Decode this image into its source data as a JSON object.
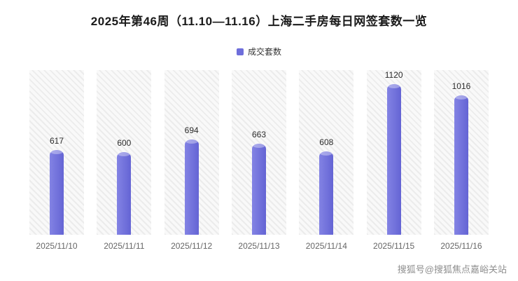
{
  "title": "2025年第46周（11.10—11.16）上海二手房每日网签套数一览",
  "legend": {
    "label": "成交套数",
    "color": "#6e6edb"
  },
  "watermark": "搜狐号@搜狐焦点嘉峪关站",
  "chart_data": {
    "type": "bar",
    "title": "2025年第46周（11.10—11.16）上海二手房每日网签套数一览",
    "series_name": "成交套数",
    "categories": [
      "2025/11/10",
      "2025/11/11",
      "2025/11/12",
      "2025/11/13",
      "2025/11/14",
      "2025/11/15",
      "2025/11/16"
    ],
    "values": [
      617,
      600,
      694,
      663,
      608,
      1120,
      1016
    ],
    "xlabel": "",
    "ylabel": "",
    "ylim": [
      0,
      1200
    ],
    "bar_color": "#6e6edb",
    "grid": false,
    "legend_position": "top",
    "column_background": "diagonal-hatch"
  }
}
